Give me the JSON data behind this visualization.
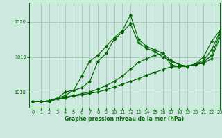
{
  "xlabel": "Graphe pression niveau de la mer (hPa)",
  "bg_color": "#cce8df",
  "grid_color": "#aaccbb",
  "line_color": "#006600",
  "ylim": [
    1017.55,
    1020.55
  ],
  "xlim": [
    -0.5,
    23
  ],
  "yticks": [
    1018,
    1019,
    1020
  ],
  "xticks": [
    0,
    1,
    2,
    3,
    4,
    5,
    6,
    7,
    8,
    9,
    10,
    11,
    12,
    13,
    14,
    15,
    16,
    17,
    18,
    19,
    20,
    21,
    22,
    23
  ],
  "series1_x": [
    0,
    1,
    2,
    3,
    4,
    5,
    6,
    7,
    8,
    9,
    10,
    11,
    12,
    13,
    14,
    15,
    16,
    17,
    18,
    19,
    20,
    21,
    22,
    23
  ],
  "series1_y": [
    1017.72,
    1017.72,
    1017.72,
    1017.8,
    1017.82,
    1017.88,
    1017.92,
    1017.96,
    1018.0,
    1018.06,
    1018.14,
    1018.22,
    1018.3,
    1018.38,
    1018.48,
    1018.56,
    1018.64,
    1018.72,
    1018.72,
    1018.74,
    1018.78,
    1018.82,
    1018.95,
    1019.55
  ],
  "series2_x": [
    0,
    1,
    2,
    3,
    4,
    5,
    6,
    7,
    8,
    9,
    10,
    11,
    12,
    13,
    14,
    15,
    16,
    17,
    18,
    19,
    20,
    21,
    22,
    23
  ],
  "series2_y": [
    1017.72,
    1017.72,
    1017.72,
    1017.8,
    1017.85,
    1017.9,
    1017.95,
    1018.0,
    1018.08,
    1018.18,
    1018.3,
    1018.45,
    1018.65,
    1018.85,
    1018.95,
    1019.05,
    1019.1,
    1018.78,
    1018.72,
    1018.74,
    1018.78,
    1018.85,
    1019.05,
    1019.65
  ],
  "series3_x": [
    0,
    1,
    2,
    3,
    4,
    5,
    6,
    7,
    8,
    9,
    10,
    11,
    12,
    13,
    14,
    15,
    16,
    17,
    18,
    19,
    20,
    21,
    22,
    23
  ],
  "series3_y": [
    1017.72,
    1017.72,
    1017.75,
    1017.82,
    1018.0,
    1018.05,
    1018.45,
    1018.88,
    1019.05,
    1019.3,
    1019.55,
    1019.75,
    1020.2,
    1019.5,
    1019.3,
    1019.2,
    1019.1,
    1018.9,
    1018.78,
    1018.72,
    1018.8,
    1019.0,
    1019.45,
    1019.75
  ],
  "series4_x": [
    0,
    1,
    2,
    3,
    4,
    5,
    6,
    7,
    8,
    9,
    10,
    11,
    12,
    13,
    14,
    15,
    16,
    17,
    18,
    19,
    20,
    21,
    22,
    23
  ],
  "series4_y": [
    1017.72,
    1017.72,
    1017.75,
    1017.82,
    1017.9,
    1018.05,
    1018.12,
    1018.3,
    1018.88,
    1019.1,
    1019.5,
    1019.7,
    1019.95,
    1019.4,
    1019.25,
    1019.15,
    1019.0,
    1018.88,
    1018.78,
    1018.74,
    1018.8,
    1018.9,
    1019.2,
    1019.72
  ]
}
